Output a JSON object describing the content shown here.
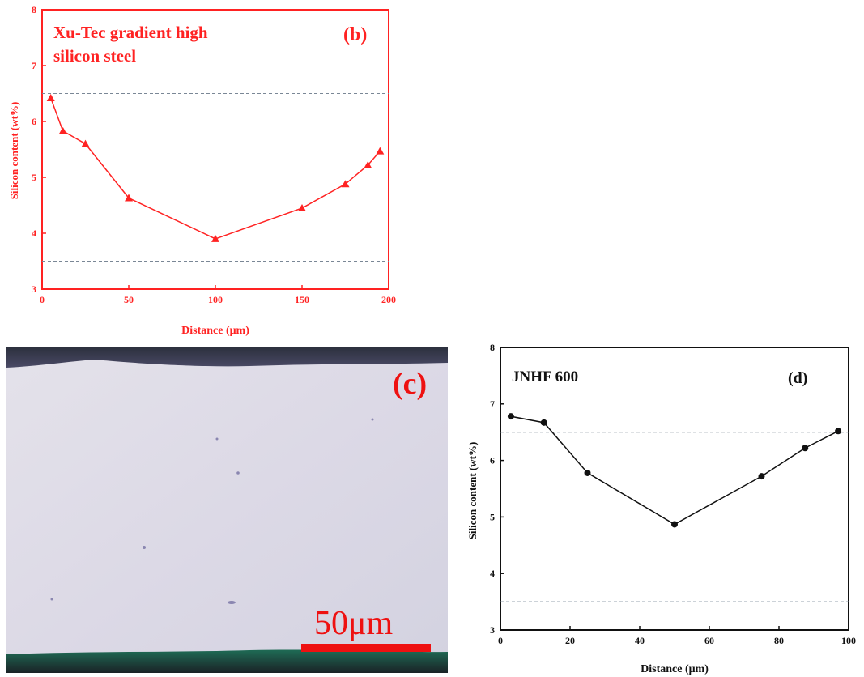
{
  "colors": {
    "panel_b": "#ff2222",
    "panel_d": "#111111",
    "grid_ref": "#7a8796",
    "scale_bar": "#ee1111"
  },
  "panel_b": {
    "title_line1": "Xu-Tec gradient high",
    "title_line2": "silicon steel",
    "label": "(b)"
  },
  "panel_c": {
    "label": "(c)",
    "scale_text": "50μm"
  },
  "panel_d": {
    "title": "JNHF 600",
    "label": "(d)"
  },
  "chart_data": [
    {
      "type": "line",
      "title": "Xu-Tec gradient high silicon steel",
      "xlabel": "Distance (μm)",
      "ylabel": "Silicon content (wt%)",
      "xlim": [
        0,
        200
      ],
      "ylim": [
        3,
        8
      ],
      "xticks": [
        0,
        50,
        100,
        150,
        200
      ],
      "yticks": [
        3,
        4,
        5,
        6,
        7,
        8
      ],
      "x": [
        5,
        12,
        25,
        50,
        100,
        150,
        175,
        188,
        195
      ],
      "series": [
        {
          "values": [
            6.42,
            5.83,
            5.6,
            4.63,
            3.9,
            4.45,
            4.88,
            5.22,
            5.47
          ],
          "marker": "triangle"
        }
      ],
      "reference_lines": [
        6.5,
        3.5
      ],
      "grid": false
    },
    {
      "type": "line",
      "title": "JNHF 600",
      "xlabel": "Distance (μm)",
      "ylabel": "Silicon content (wt%)",
      "xlim": [
        0,
        100
      ],
      "ylim": [
        3,
        8
      ],
      "xticks": [
        0,
        20,
        40,
        60,
        80,
        100
      ],
      "yticks": [
        3,
        4,
        5,
        6,
        7,
        8
      ],
      "x": [
        3,
        12.5,
        25,
        50,
        75,
        87.5,
        97
      ],
      "series": [
        {
          "values": [
            6.78,
            6.67,
            5.78,
            4.87,
            5.72,
            6.22,
            6.52
          ],
          "marker": "circle"
        }
      ],
      "reference_lines": [
        6.5,
        3.5
      ],
      "grid": false
    }
  ]
}
